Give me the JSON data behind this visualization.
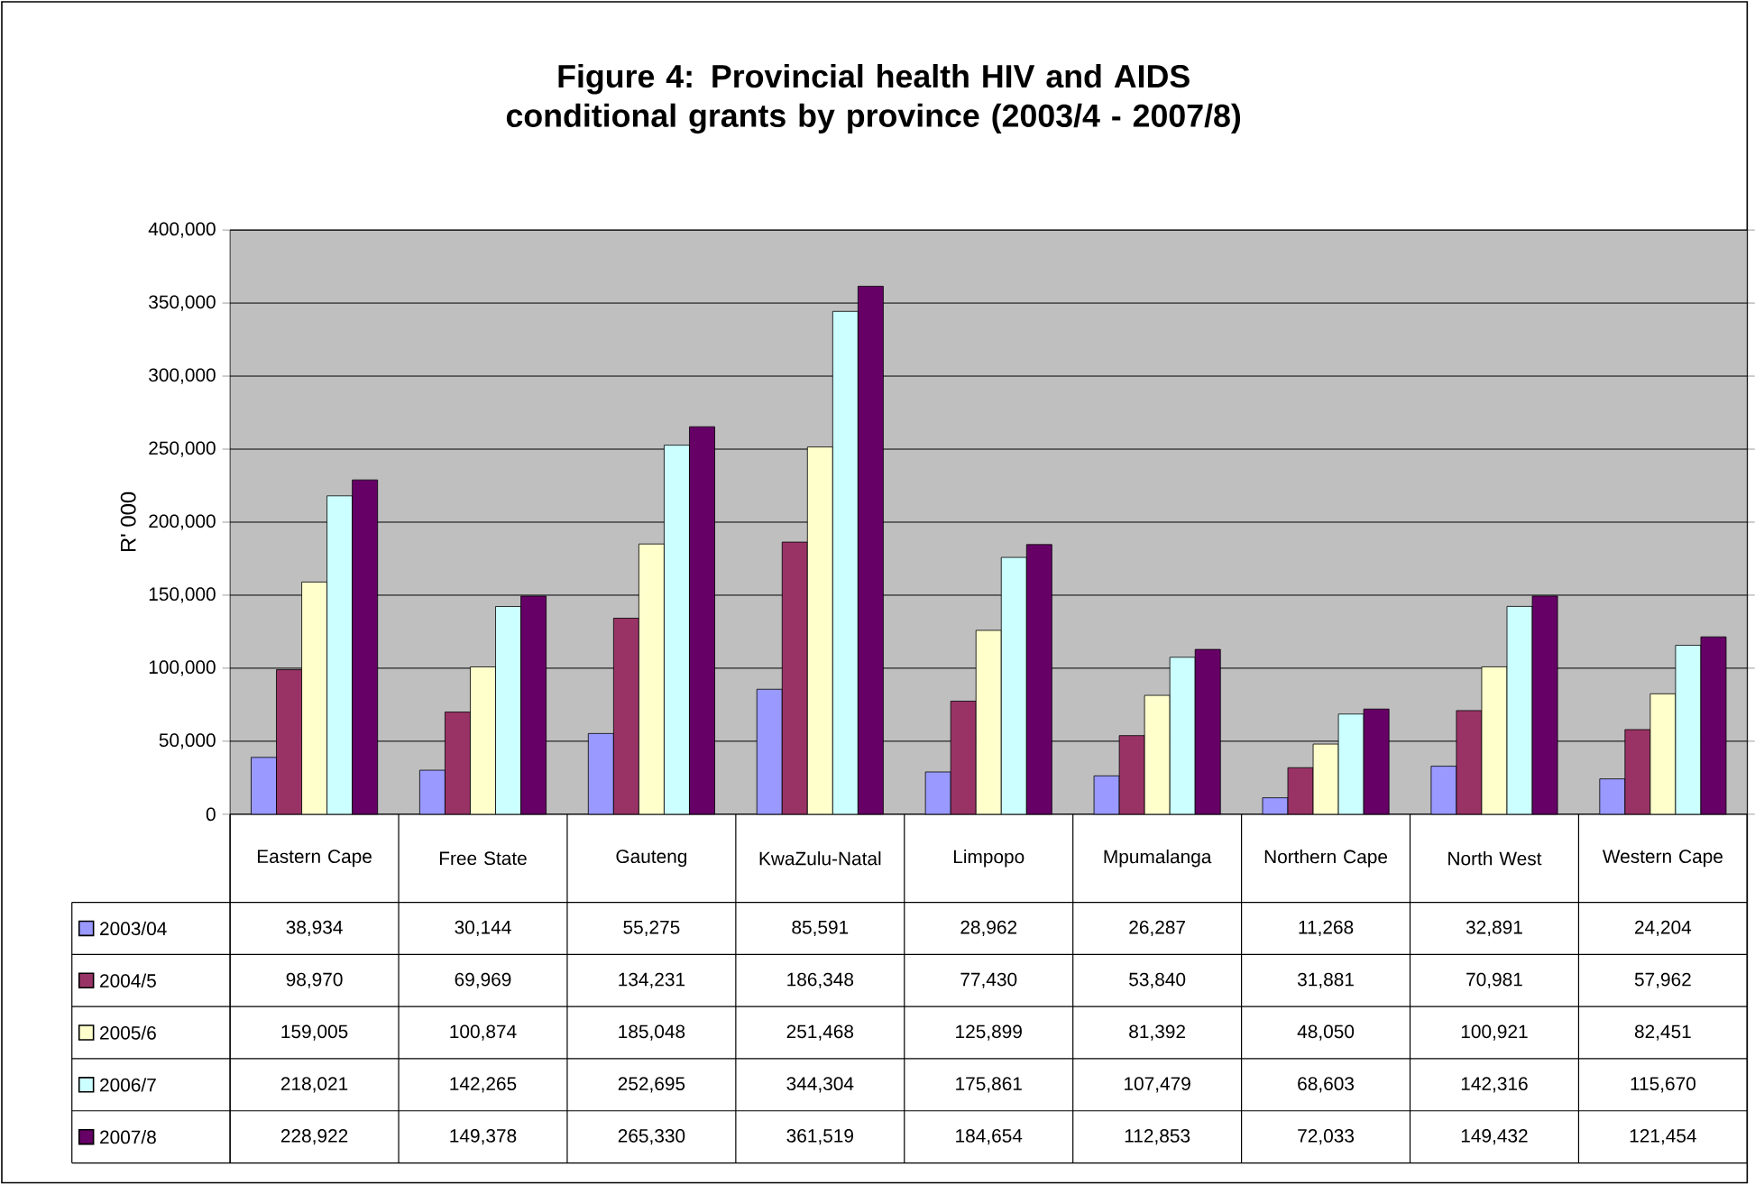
{
  "chart_data": {
    "type": "bar",
    "title": "Figure 4: Provincial health HIV and AIDS conditional grants by province (2003/4 - 2007/8)",
    "ylabel": "R' 000",
    "categories": [
      "Eastern Cape",
      "Free State",
      "Gauteng",
      "KwaZulu-Natal",
      "Limpopo",
      "Mpumalanga",
      "Northern Cape",
      "North West",
      "Western Cape"
    ],
    "series": [
      {
        "name": "2003/04",
        "color": "#9999ff",
        "values": [
          38934,
          30144,
          55275,
          85591,
          28962,
          26287,
          11268,
          32891,
          24204
        ],
        "value_labels": [
          "38,934",
          "30,144",
          "55,275",
          "85,591",
          "28,962",
          "26,287",
          "11,268",
          "32,891",
          "24,204"
        ]
      },
      {
        "name": "2004/5",
        "color": "#993366",
        "values": [
          98970,
          69969,
          134231,
          186348,
          77430,
          53840,
          31881,
          70981,
          57962
        ],
        "value_labels": [
          "98,970",
          "69,969",
          "134,231",
          "186,348",
          "77,430",
          "53,840",
          "31,881",
          "70,981",
          "57,962"
        ]
      },
      {
        "name": "2005/6",
        "color": "#ffffcc",
        "values": [
          159005,
          100874,
          185048,
          251468,
          125899,
          81392,
          48050,
          100921,
          82451
        ],
        "value_labels": [
          "159,005",
          "100,874",
          "185,048",
          "251,468",
          "125,899",
          "81,392",
          "48,050",
          "100,921",
          "82,451"
        ]
      },
      {
        "name": "2006/7",
        "color": "#ccffff",
        "values": [
          218021,
          142265,
          252695,
          344304,
          175861,
          107479,
          68603,
          142316,
          115670
        ],
        "value_labels": [
          "218,021",
          "142,265",
          "252,695",
          "344,304",
          "175,861",
          "107,479",
          "68,603",
          "142,316",
          "115,670"
        ]
      },
      {
        "name": "2007/8",
        "color": "#660066",
        "values": [
          228922,
          149378,
          265330,
          361519,
          184654,
          112853,
          72033,
          149432,
          121454
        ],
        "value_labels": [
          "228,922",
          "149,378",
          "265,330",
          "361,519",
          "184,654",
          "112,853",
          "72,033",
          "149,432",
          "121,454"
        ]
      }
    ],
    "ylim": [
      0,
      400000
    ],
    "yticks": [
      {
        "value": 0,
        "label": "0"
      },
      {
        "value": 50000,
        "label": "50,000"
      },
      {
        "value": 100000,
        "label": "100,000"
      },
      {
        "value": 150000,
        "label": "150,000"
      },
      {
        "value": 200000,
        "label": "200,000"
      },
      {
        "value": 250000,
        "label": "250,000"
      },
      {
        "value": 300000,
        "label": "300,000"
      },
      {
        "value": 350000,
        "label": "350,000"
      },
      {
        "value": 400000,
        "label": "400,000"
      }
    ],
    "grid": "y",
    "legend": "bottom"
  }
}
